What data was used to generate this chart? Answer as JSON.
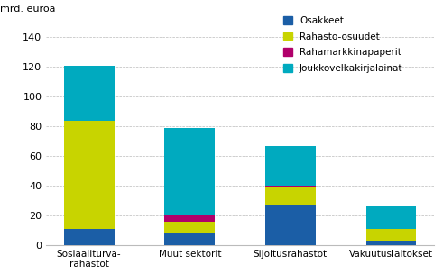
{
  "categories": [
    "Sosiaaliturva-\nrahastot",
    "Muut sektorit",
    "Sijoitusrahastot",
    "Vakuutuslaitokset"
  ],
  "series": {
    "Osakkeet": [
      11,
      8,
      27,
      3
    ],
    "Rahasto-osuudet": [
      73,
      8,
      12,
      8
    ],
    "Rahamarkkinapaperit": [
      0,
      4,
      1,
      0
    ],
    "Joukkovelkakirjalainat": [
      37,
      59,
      27,
      15
    ]
  },
  "colors": {
    "Osakkeet": "#1B5EA6",
    "Rahasto-osuudet": "#C8D400",
    "Rahamarkkinapaperit": "#B0006A",
    "Joukkovelkakirjalainat": "#00AABF"
  },
  "stack_order": [
    "Osakkeet",
    "Rahasto-osuudet",
    "Rahamarkkinapaperit",
    "Joukkovelkakirjalainat"
  ],
  "legend_order": [
    "Osakkeet",
    "Rahasto-osuudet",
    "Rahamarkkinapaperit",
    "Joukkovelkakirjalainat"
  ],
  "ylabel_text": "mrd. euroa",
  "ylim": [
    0,
    150
  ],
  "yticks": [
    0,
    20,
    40,
    60,
    80,
    100,
    120,
    140
  ],
  "background_color": "#FFFFFF",
  "grid_color": "#BBBBBB"
}
